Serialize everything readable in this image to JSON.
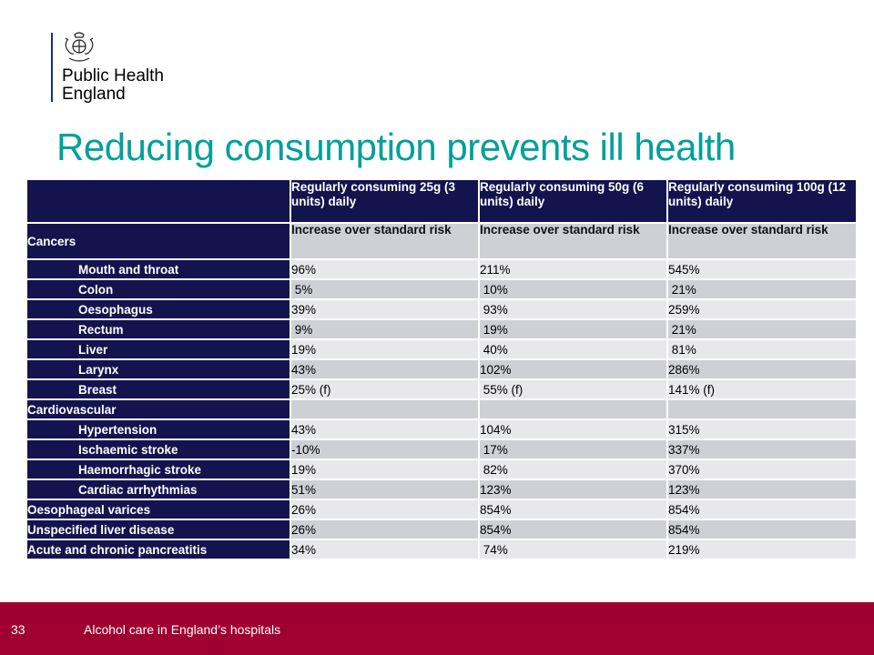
{
  "org": {
    "line1": "Public Health",
    "line2": "England"
  },
  "title": "Reducing consumption prevents ill health",
  "table": {
    "headers": [
      "",
      "Regularly consuming 25g (3 units) daily",
      "Regularly consuming 50g (6 units) daily",
      "Regularly consuming 100g (12 units) daily"
    ],
    "sub_header": "Increase over standard risk",
    "rows": [
      {
        "label": "Cancers",
        "values": [
          "",
          "",
          ""
        ]
      },
      {
        "label": "Mouth and throat",
        "values": [
          "96%",
          "211%",
          "545%"
        ]
      },
      {
        "label": "Colon",
        "values": [
          " 5%",
          " 10%",
          " 21%"
        ]
      },
      {
        "label": "Oesophagus",
        "values": [
          "39%",
          " 93%",
          "259%"
        ]
      },
      {
        "label": "Rectum",
        "values": [
          " 9%",
          " 19%",
          " 21%"
        ]
      },
      {
        "label": "Liver",
        "values": [
          "19%",
          " 40%",
          " 81%"
        ]
      },
      {
        "label": "Larynx",
        "values": [
          "43%",
          "102%",
          "286%"
        ]
      },
      {
        "label": "Breast",
        "values": [
          "25% (f)",
          " 55% (f)",
          "141% (f)"
        ]
      },
      {
        "label": "Cardiovascular",
        "values": [
          "",
          "",
          ""
        ]
      },
      {
        "label": "Hypertension",
        "values": [
          "43%",
          "104%",
          "315%"
        ]
      },
      {
        "label": "Ischaemic stroke",
        "values": [
          "-10%",
          " 17%",
          "337%"
        ]
      },
      {
        "label": "Haemorrhagic stroke",
        "values": [
          "19%",
          " 82%",
          "370%"
        ]
      },
      {
        "label": "Cardiac arrhythmias",
        "values": [
          "51%",
          "123%",
          "123%"
        ]
      },
      {
        "label": "Oesophageal varices",
        "values": [
          "26%",
          "854%",
          "854%"
        ]
      },
      {
        "label": "Unspecified liver disease",
        "values": [
          "26%",
          "854%",
          "854%"
        ]
      },
      {
        "label": "Acute and chronic pancreatitis",
        "values": [
          "34%",
          " 74%",
          "219%"
        ]
      }
    ]
  },
  "footer": {
    "page_number": "33",
    "text": "Alcohol care in England’s hospitals"
  },
  "colors": {
    "title": "#00a09a",
    "header_bg": "#13144e",
    "footer_bg": "#a00031",
    "row_dark": "#cfd0d6",
    "row_light": "#e8e8ec"
  }
}
